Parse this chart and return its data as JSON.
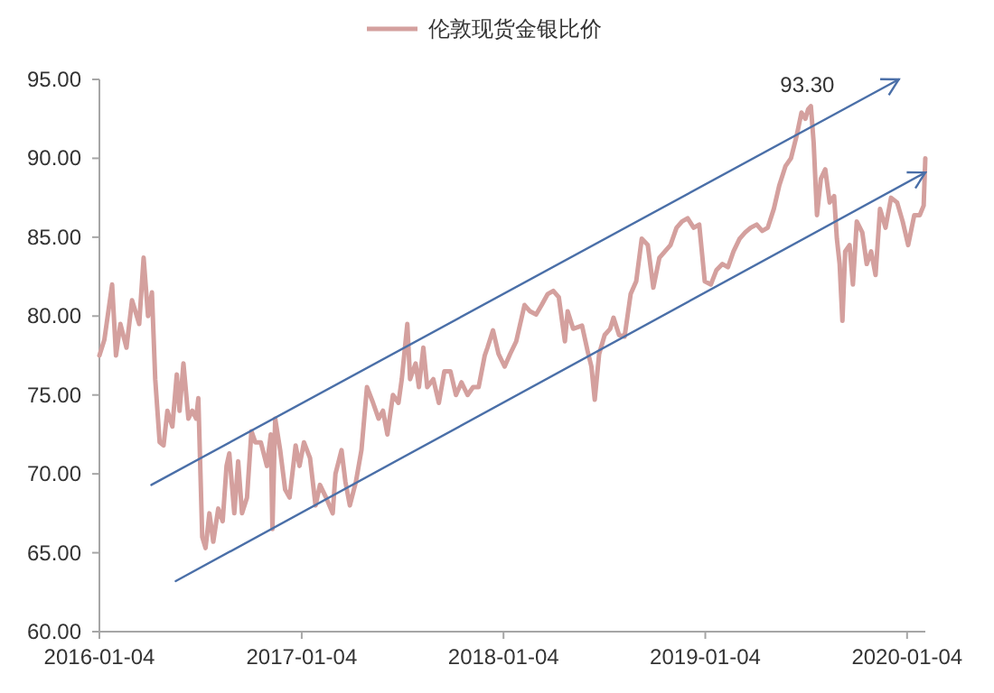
{
  "chart_data": {
    "type": "line",
    "legend": "top",
    "marker": "none",
    "line_style": "solid",
    "xlim": [
      "2016-01-04",
      "2020-02-06"
    ],
    "ylim": [
      60,
      95
    ],
    "xticks": [
      "2016-01-04",
      "2017-01-04",
      "2018-01-04",
      "2019-01-04",
      "2020-01-04"
    ],
    "yticks": [
      {
        "value": 60,
        "label": "60.00"
      },
      {
        "value": 65,
        "label": "65.00"
      },
      {
        "value": 70,
        "label": "70.00"
      },
      {
        "value": 75,
        "label": "75.00"
      },
      {
        "value": 80,
        "label": "80.00"
      },
      {
        "value": 85,
        "label": "85.00"
      },
      {
        "value": 90,
        "label": "90.00"
      },
      {
        "value": 95,
        "label": "95.00"
      }
    ],
    "annotations": [
      {
        "text": "93.30",
        "x": "2019-07-14",
        "y": 93.3
      }
    ],
    "x": [
      "2016-01-04",
      "2016-01-13",
      "2016-01-27",
      "2016-02-03",
      "2016-02-11",
      "2016-02-22",
      "2016-03-03",
      "2016-03-16",
      "2016-03-24",
      "2016-04-01",
      "2016-04-08",
      "2016-04-14",
      "2016-04-22",
      "2016-04-29",
      "2016-05-06",
      "2016-05-15",
      "2016-05-23",
      "2016-05-28",
      "2016-06-04",
      "2016-06-13",
      "2016-06-20",
      "2016-06-27",
      "2016-07-01",
      "2016-07-08",
      "2016-07-14",
      "2016-07-21",
      "2016-07-28",
      "2016-08-06",
      "2016-08-14",
      "2016-08-21",
      "2016-08-26",
      "2016-09-04",
      "2016-09-11",
      "2016-09-18",
      "2016-09-27",
      "2016-10-05",
      "2016-10-12",
      "2016-10-22",
      "2016-11-02",
      "2016-11-09",
      "2016-11-12",
      "2016-11-17",
      "2016-11-26",
      "2016-12-05",
      "2016-12-13",
      "2016-12-24",
      "2016-12-31",
      "2017-01-08",
      "2017-01-19",
      "2017-01-29",
      "2017-02-06",
      "2017-02-17",
      "2017-03-01",
      "2017-03-06",
      "2017-03-17",
      "2017-03-24",
      "2017-04-01",
      "2017-04-12",
      "2017-04-22",
      "2017-05-02",
      "2017-05-13",
      "2017-05-23",
      "2017-05-31",
      "2017-06-08",
      "2017-06-18",
      "2017-06-28",
      "2017-07-04",
      "2017-07-14",
      "2017-07-19",
      "2017-07-29",
      "2017-08-04",
      "2017-08-12",
      "2017-08-19",
      "2017-08-30",
      "2017-09-09",
      "2017-09-19",
      "2017-09-30",
      "2017-10-10",
      "2017-10-20",
      "2017-10-31",
      "2017-11-10",
      "2017-11-20",
      "2017-12-01",
      "2017-12-06",
      "2017-12-16",
      "2017-12-26",
      "2018-01-06",
      "2018-01-16",
      "2018-01-27",
      "2018-02-11",
      "2018-02-21",
      "2018-03-04",
      "2018-03-14",
      "2018-03-25",
      "2018-04-04",
      "2018-04-14",
      "2018-04-25",
      "2018-04-30",
      "2018-05-10",
      "2018-05-26",
      "2018-06-05",
      "2018-06-12",
      "2018-06-18",
      "2018-06-26",
      "2018-07-06",
      "2018-07-16",
      "2018-07-22",
      "2018-08-01",
      "2018-08-11",
      "2018-08-22",
      "2018-09-01",
      "2018-09-11",
      "2018-09-22",
      "2018-10-02",
      "2018-10-13",
      "2018-10-23",
      "2018-11-02",
      "2018-11-13",
      "2018-11-23",
      "2018-12-03",
      "2018-12-14",
      "2018-12-24",
      "2019-01-03",
      "2019-01-14",
      "2019-01-24",
      "2019-02-04",
      "2019-02-14",
      "2019-02-24",
      "2019-03-07",
      "2019-03-17",
      "2019-03-27",
      "2019-04-07",
      "2019-04-17",
      "2019-04-27",
      "2019-05-08",
      "2019-05-18",
      "2019-05-29",
      "2019-06-08",
      "2019-06-18",
      "2019-06-27",
      "2019-07-04",
      "2019-07-09",
      "2019-07-14",
      "2019-07-19",
      "2019-07-25",
      "2019-08-01",
      "2019-08-09",
      "2019-08-17",
      "2019-08-25",
      "2019-08-30",
      "2019-09-04",
      "2019-09-09",
      "2019-09-14",
      "2019-09-22",
      "2019-09-28",
      "2019-10-05",
      "2019-10-15",
      "2019-10-23",
      "2019-10-31",
      "2019-11-08",
      "2019-11-16",
      "2019-11-26",
      "2019-12-06",
      "2019-12-17",
      "2019-12-27",
      "2020-01-06",
      "2020-01-17",
      "2020-01-27",
      "2020-02-03",
      "2020-02-06"
    ],
    "series": [
      {
        "name": "伦敦现货金银比价",
        "color": "#d4a09e",
        "values": [
          77.5,
          78.5,
          82.0,
          77.5,
          79.5,
          78.0,
          81.0,
          79.5,
          83.7,
          80.0,
          81.5,
          76.0,
          72.0,
          71.8,
          74.0,
          73.0,
          76.3,
          74.0,
          77.0,
          73.5,
          74.0,
          73.5,
          74.8,
          66.0,
          65.3,
          67.5,
          65.7,
          67.8,
          67.0,
          70.5,
          71.3,
          67.5,
          70.8,
          67.5,
          68.5,
          72.7,
          72.0,
          72.0,
          70.5,
          72.5,
          66.5,
          73.5,
          71.5,
          69.0,
          68.5,
          71.8,
          70.5,
          72.0,
          71.0,
          68.0,
          69.3,
          68.5,
          67.5,
          70.0,
          71.5,
          69.5,
          68.0,
          69.5,
          71.5,
          75.5,
          74.5,
          73.5,
          74.0,
          72.5,
          75.0,
          74.5,
          76.0,
          79.5,
          76.0,
          77.0,
          75.5,
          78.0,
          75.5,
          76.0,
          74.5,
          76.5,
          76.5,
          75.0,
          75.8,
          75.0,
          75.5,
          75.5,
          77.5,
          78.0,
          79.1,
          77.6,
          76.8,
          77.6,
          78.4,
          80.7,
          80.3,
          80.1,
          80.7,
          81.4,
          81.6,
          81.2,
          78.4,
          80.3,
          79.2,
          79.4,
          77.8,
          76.8,
          74.7,
          77.6,
          78.8,
          79.2,
          79.9,
          78.8,
          78.7,
          81.4,
          82.2,
          84.9,
          84.5,
          81.8,
          83.7,
          84.1,
          84.5,
          85.6,
          86.0,
          86.2,
          85.6,
          85.8,
          82.2,
          82.0,
          82.9,
          83.3,
          83.1,
          84.1,
          84.9,
          85.3,
          85.6,
          85.8,
          85.4,
          85.6,
          86.8,
          88.3,
          89.5,
          90.0,
          91.4,
          92.9,
          92.5,
          93.1,
          93.3,
          91.0,
          86.4,
          88.7,
          89.3,
          87.2,
          87.6,
          84.9,
          83.3,
          79.7,
          84.1,
          84.5,
          82.0,
          86.0,
          85.3,
          83.3,
          84.1,
          82.6,
          86.8,
          85.6,
          87.5,
          87.2,
          86.0,
          84.5,
          86.4,
          86.4,
          87.0,
          90.0
        ]
      },
      {
        "type": "line",
        "color": "#4a6fa8",
        "x": [
          "2016-04-07",
          "2019-12-20"
        ],
        "values": [
          69.3,
          95.0
        ]
      },
      {
        "type": "line",
        "color": "#4a6fa8",
        "x": [
          "2016-05-21",
          "2020-02-06"
        ],
        "values": [
          63.2,
          89.1
        ]
      }
    ]
  }
}
